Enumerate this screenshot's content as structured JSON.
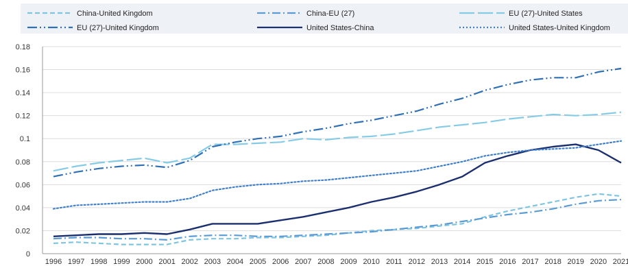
{
  "chart_data": {
    "type": "line",
    "x": [
      1996,
      1997,
      1998,
      1999,
      2000,
      2001,
      2002,
      2003,
      2004,
      2005,
      2006,
      2007,
      2008,
      2009,
      2010,
      2011,
      2012,
      2013,
      2014,
      2015,
      2016,
      2017,
      2018,
      2019,
      2020,
      2021
    ],
    "x_tick_labels": [
      "1996",
      "1997",
      "1998",
      "1999",
      "2000",
      "2001",
      "2002",
      "2003",
      "2004",
      "2005",
      "2006",
      "2007",
      "2008",
      "2009",
      "2010",
      "2011",
      "2012",
      "2013",
      "2014",
      "2015",
      "2016",
      "2017",
      "2018",
      "2019",
      "2020",
      "2021"
    ],
    "ylim": [
      0,
      0.18
    ],
    "y_ticks": [
      0,
      0.02,
      0.04,
      0.06,
      0.08,
      0.1,
      0.12,
      0.14,
      0.16,
      0.18
    ],
    "y_tick_labels": [
      "0",
      "0.02",
      "0.04",
      "0.06",
      "0.08",
      "0.1",
      "0.12",
      "0.14",
      "0.16",
      "0.18"
    ],
    "grid": "horizontal",
    "legend_position": "top",
    "series": [
      {
        "name": "China-United Kingdom",
        "color": "#7fc4e0",
        "dash": "7,4",
        "values": [
          0.009,
          0.01,
          0.009,
          0.008,
          0.008,
          0.008,
          0.012,
          0.013,
          0.013,
          0.014,
          0.014,
          0.015,
          0.016,
          0.018,
          0.02,
          0.021,
          0.022,
          0.024,
          0.026,
          0.032,
          0.037,
          0.041,
          0.045,
          0.049,
          0.052,
          0.05
        ]
      },
      {
        "name": "China-EU (27)",
        "color": "#5b9bd5",
        "dash": "12,4,2,4",
        "values": [
          0.013,
          0.014,
          0.014,
          0.013,
          0.013,
          0.012,
          0.015,
          0.016,
          0.016,
          0.015,
          0.015,
          0.016,
          0.017,
          0.018,
          0.019,
          0.021,
          0.023,
          0.025,
          0.028,
          0.031,
          0.034,
          0.036,
          0.039,
          0.043,
          0.046,
          0.047
        ]
      },
      {
        "name": "EU (27)-United States",
        "color": "#86cbe6",
        "dash": "22,5",
        "values": [
          0.072,
          0.076,
          0.079,
          0.081,
          0.083,
          0.079,
          0.083,
          0.095,
          0.095,
          0.096,
          0.097,
          0.1,
          0.099,
          0.101,
          0.102,
          0.104,
          0.107,
          0.11,
          0.112,
          0.114,
          0.117,
          0.119,
          0.121,
          0.12,
          0.121,
          0.123
        ]
      },
      {
        "name": "EU (27)-United Kingdom",
        "color": "#2f6fb4",
        "dash": "14,4,2,4,2,4",
        "values": [
          0.067,
          0.071,
          0.074,
          0.076,
          0.077,
          0.075,
          0.081,
          0.093,
          0.097,
          0.1,
          0.102,
          0.106,
          0.109,
          0.113,
          0.116,
          0.12,
          0.124,
          0.13,
          0.135,
          0.142,
          0.147,
          0.151,
          0.153,
          0.153,
          0.158,
          0.161
        ]
      },
      {
        "name": "United States-China",
        "color": "#1b2f6e",
        "dash": "",
        "values": [
          0.015,
          0.016,
          0.017,
          0.017,
          0.018,
          0.017,
          0.021,
          0.026,
          0.026,
          0.026,
          0.029,
          0.032,
          0.036,
          0.04,
          0.045,
          0.049,
          0.054,
          0.06,
          0.067,
          0.079,
          0.085,
          0.09,
          0.093,
          0.095,
          0.09,
          0.079
        ]
      },
      {
        "name": "United States-United Kingdom",
        "color": "#3f7fcc",
        "dash": "2,3",
        "values": [
          0.039,
          0.042,
          0.043,
          0.044,
          0.045,
          0.045,
          0.048,
          0.055,
          0.058,
          0.06,
          0.061,
          0.063,
          0.064,
          0.066,
          0.068,
          0.07,
          0.072,
          0.076,
          0.08,
          0.085,
          0.088,
          0.09,
          0.091,
          0.092,
          0.095,
          0.098
        ]
      }
    ]
  }
}
